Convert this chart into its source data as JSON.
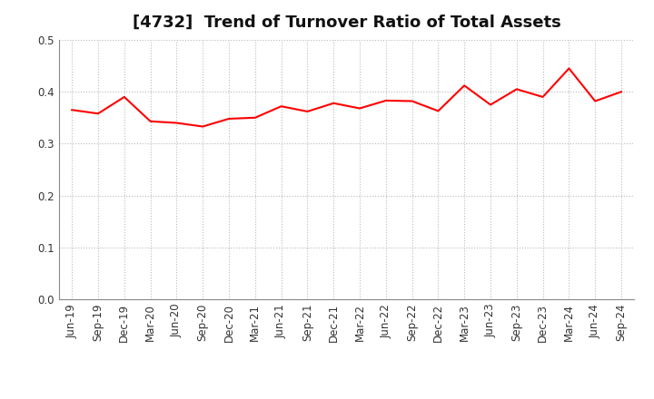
{
  "title": "[4732]  Trend of Turnover Ratio of Total Assets",
  "labels": [
    "Jun-19",
    "Sep-19",
    "Dec-19",
    "Mar-20",
    "Jun-20",
    "Sep-20",
    "Dec-20",
    "Mar-21",
    "Jun-21",
    "Sep-21",
    "Dec-21",
    "Mar-22",
    "Jun-22",
    "Sep-22",
    "Dec-22",
    "Mar-23",
    "Jun-23",
    "Sep-23",
    "Dec-23",
    "Mar-24",
    "Jun-24",
    "Sep-24"
  ],
  "values": [
    0.365,
    0.358,
    0.39,
    0.343,
    0.34,
    0.333,
    0.348,
    0.35,
    0.372,
    0.362,
    0.378,
    0.368,
    0.383,
    0.382,
    0.363,
    0.412,
    0.375,
    0.405,
    0.39,
    0.445,
    0.382,
    0.4
  ],
  "line_color": "#FF0000",
  "line_width": 1.5,
  "ylim": [
    0.0,
    0.5
  ],
  "yticks": [
    0.0,
    0.1,
    0.2,
    0.3,
    0.4,
    0.5
  ],
  "background_color": "#ffffff",
  "grid_color": "#bbbbbb",
  "title_fontsize": 13,
  "tick_fontsize": 8.5
}
